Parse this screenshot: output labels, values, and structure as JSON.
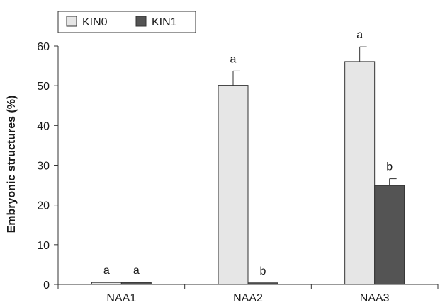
{
  "chart_data": {
    "type": "bar",
    "categories": [
      "NAA1",
      "NAA2",
      "NAA3"
    ],
    "series": [
      {
        "name": "KIN0",
        "color": "#e6e6e6",
        "values": [
          0.5,
          50.1,
          56.1
        ],
        "errors": [
          0,
          3.6,
          3.7
        ],
        "labels": [
          "a",
          "a",
          "a"
        ]
      },
      {
        "name": "KIN1",
        "color": "#545454",
        "values": [
          0.5,
          0.4,
          24.9
        ],
        "errors": [
          0,
          0,
          1.7
        ],
        "labels": [
          "a",
          "b",
          "b"
        ]
      }
    ],
    "title": "",
    "xlabel": "",
    "ylabel": "Embryonic structures (%)",
    "ylim": [
      0,
      60
    ],
    "yticks": [
      0,
      10,
      20,
      30,
      40,
      50,
      60
    ],
    "grid": false,
    "legend_position": "top-left"
  }
}
